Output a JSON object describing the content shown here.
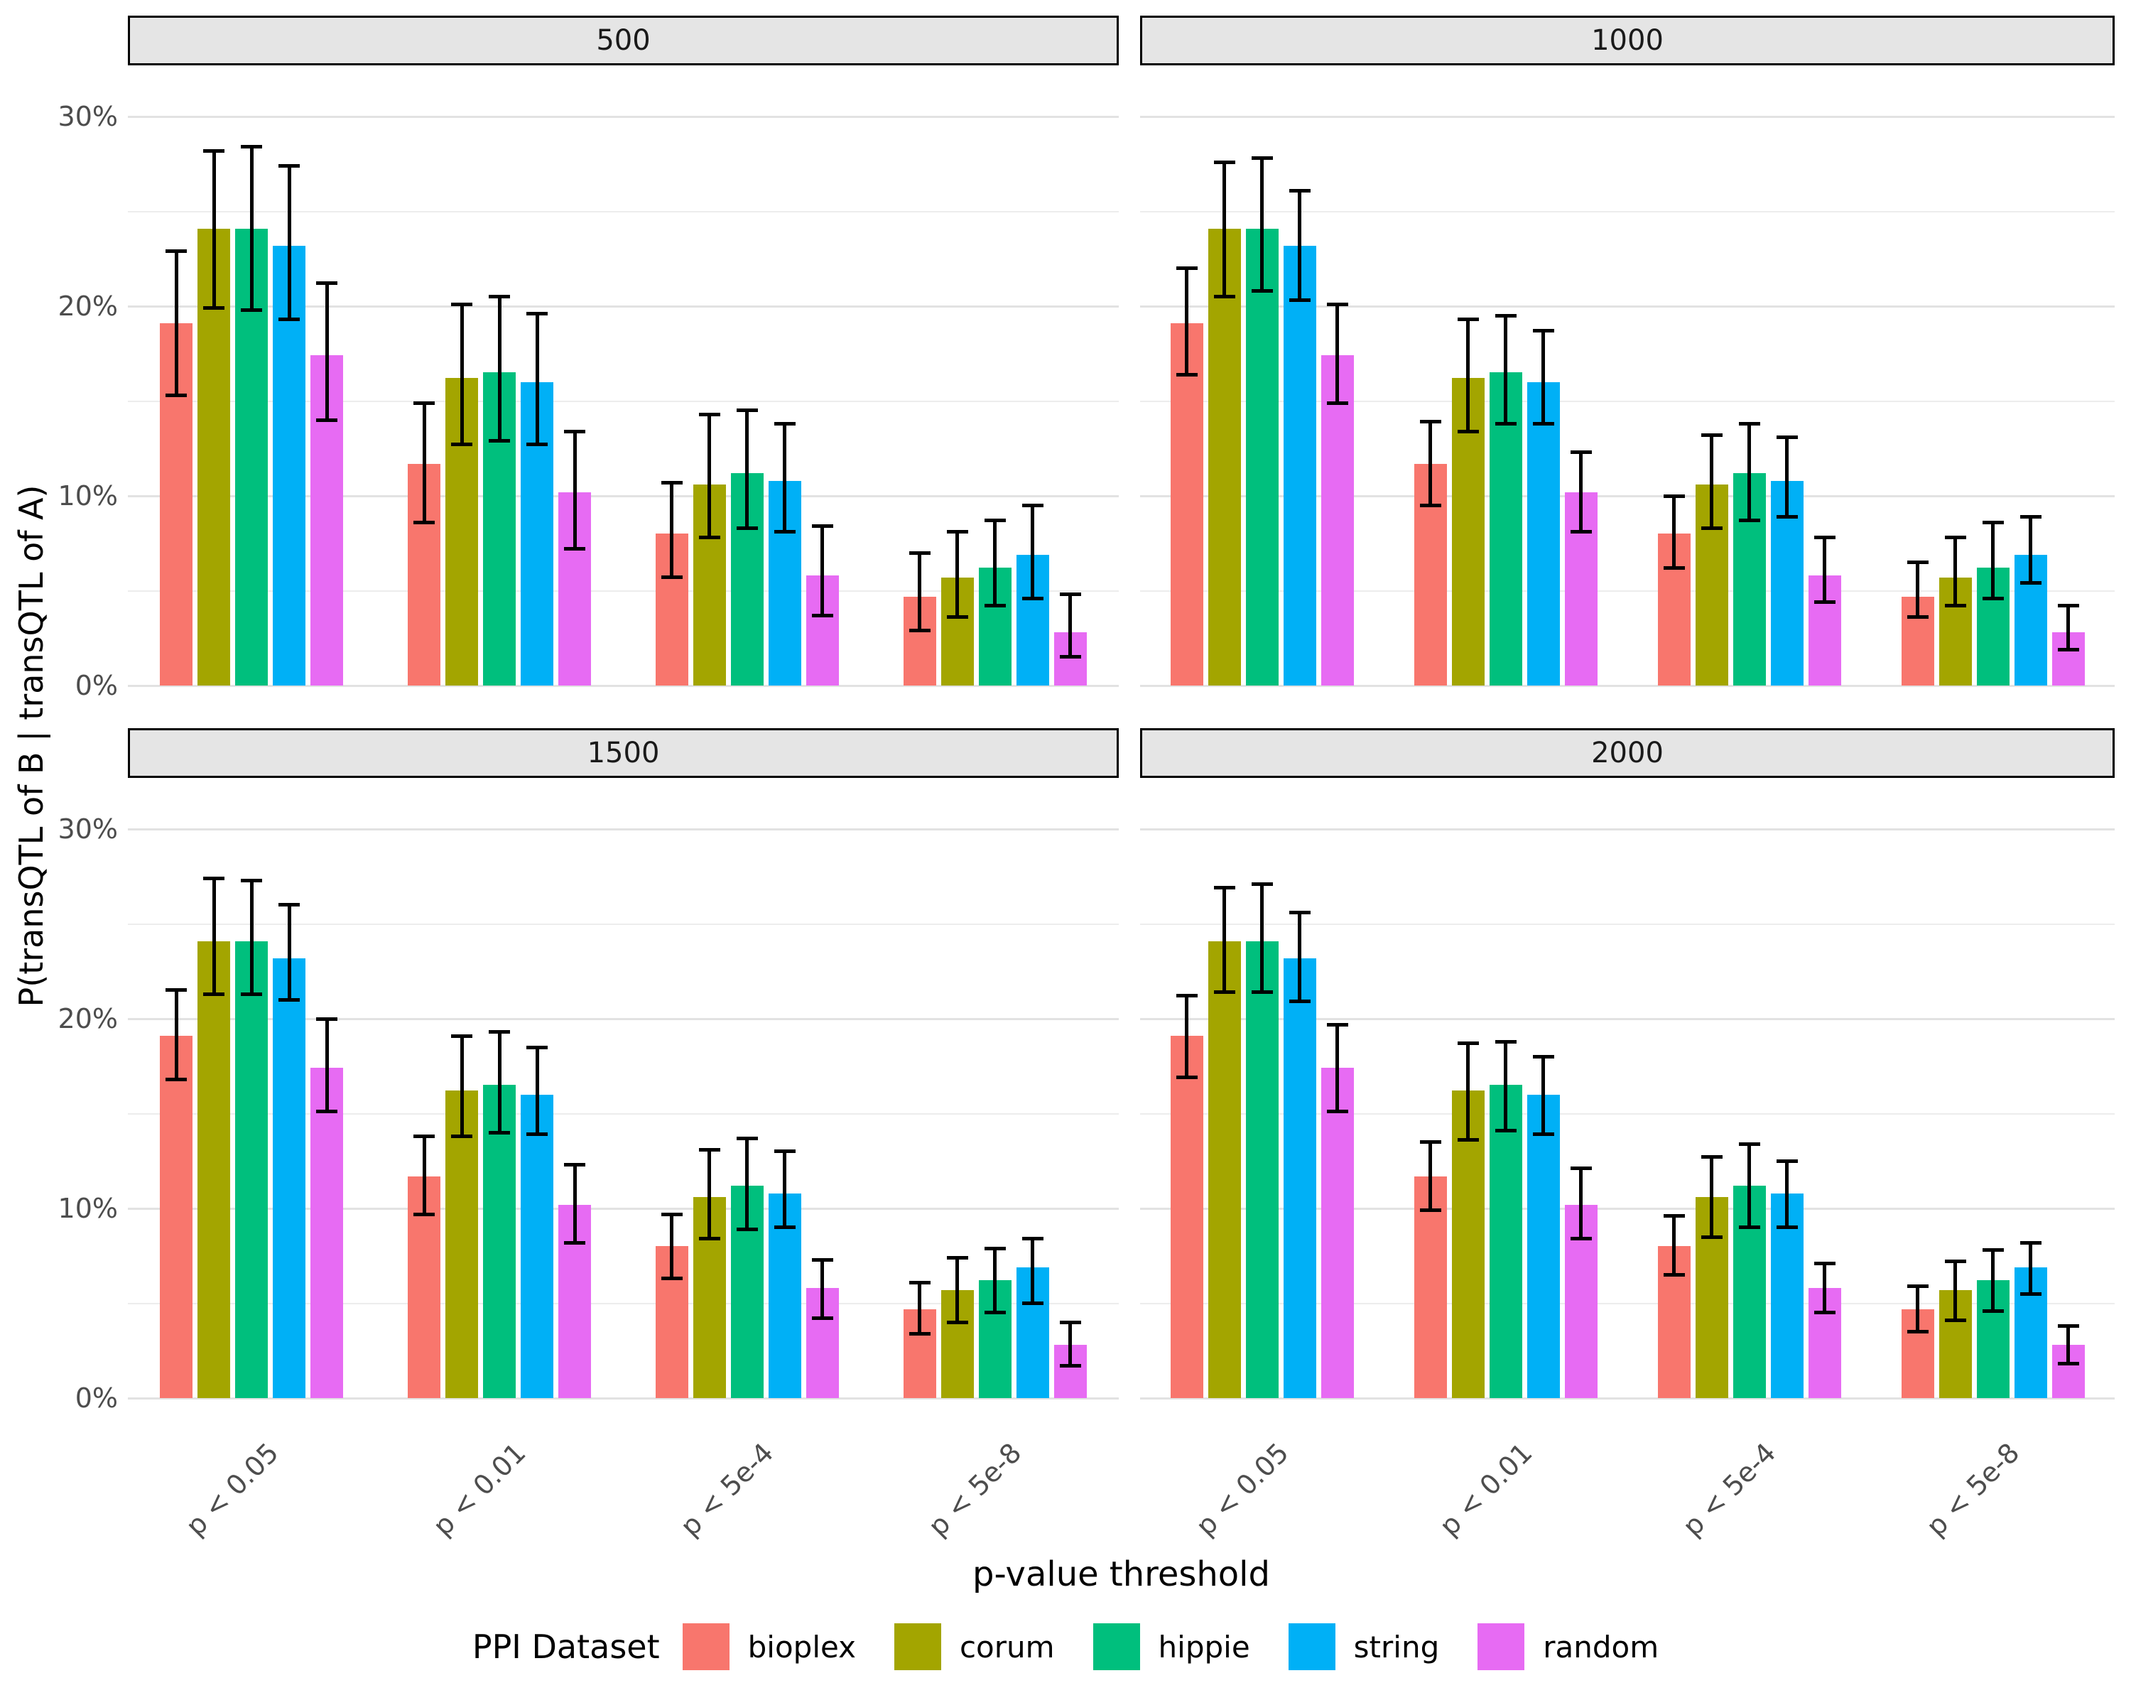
{
  "styles": {
    "background": "#FFFFFF",
    "strip_background": "#E5E5E5",
    "strip_border": "#000000",
    "grid_major": "#E2E2E2",
    "grid_minor": "#EDEDED",
    "error_bar": "#000000",
    "tick_label": "#4D4D4D",
    "title_text": "#000000"
  },
  "chart_data": {
    "type": "bar",
    "title": "",
    "ylabel": "P(transQTL of B | transQTL of A)",
    "xlabel": "p-value threshold",
    "legend_title": "PPI Dataset",
    "legend_position": "bottom",
    "facet_layout": "2x2",
    "grid": {
      "major": [
        0,
        10,
        20,
        30
      ],
      "minor": [
        5,
        15,
        25
      ]
    },
    "ylim": [
      0,
      30
    ],
    "yticks": [
      {
        "value": 0,
        "label": "0%"
      },
      {
        "value": 10,
        "label": "10%"
      },
      {
        "value": 20,
        "label": "20%"
      },
      {
        "value": 30,
        "label": "30%"
      }
    ],
    "categories": [
      "p < 0.05",
      "p < 0.01",
      "p < 5e-4",
      "p < 5e-8"
    ],
    "series": [
      {
        "name": "bioplex",
        "color": "#F8766D"
      },
      {
        "name": "corum",
        "color": "#A3A500"
      },
      {
        "name": "hippie",
        "color": "#00BF7D"
      },
      {
        "name": "string",
        "color": "#00B0F6"
      },
      {
        "name": "random",
        "color": "#E76BF3"
      }
    ],
    "values_format": "facets[i].values[category_index][series_index] = [value_pct, ci_low_pct, ci_high_pct]",
    "facets": [
      {
        "label": "500",
        "values": [
          [
            [
              19.1,
              15.3,
              22.9
            ],
            [
              24.1,
              19.9,
              28.2
            ],
            [
              24.1,
              19.8,
              28.4
            ],
            [
              23.2,
              19.3,
              27.4
            ],
            [
              17.4,
              14.0,
              21.2
            ]
          ],
          [
            [
              11.7,
              8.6,
              14.9
            ],
            [
              16.2,
              12.7,
              20.1
            ],
            [
              16.5,
              12.9,
              20.5
            ],
            [
              16.0,
              12.7,
              19.6
            ],
            [
              10.2,
              7.2,
              13.4
            ]
          ],
          [
            [
              8.0,
              5.7,
              10.7
            ],
            [
              10.6,
              7.8,
              14.3
            ],
            [
              11.2,
              8.3,
              14.5
            ],
            [
              10.8,
              8.1,
              13.8
            ],
            [
              5.8,
              3.7,
              8.4
            ]
          ],
          [
            [
              4.7,
              2.9,
              7.0
            ],
            [
              5.7,
              3.6,
              8.1
            ],
            [
              6.2,
              4.2,
              8.7
            ],
            [
              6.9,
              4.6,
              9.5
            ],
            [
              2.8,
              1.5,
              4.8
            ]
          ]
        ]
      },
      {
        "label": "1000",
        "values": [
          [
            [
              19.1,
              16.4,
              22.0
            ],
            [
              24.1,
              20.5,
              27.6
            ],
            [
              24.1,
              20.8,
              27.8
            ],
            [
              23.2,
              20.3,
              26.1
            ],
            [
              17.4,
              14.9,
              20.1
            ]
          ],
          [
            [
              11.7,
              9.5,
              13.9
            ],
            [
              16.2,
              13.4,
              19.3
            ],
            [
              16.5,
              13.8,
              19.5
            ],
            [
              16.0,
              13.8,
              18.7
            ],
            [
              10.2,
              8.1,
              12.3
            ]
          ],
          [
            [
              8.0,
              6.2,
              10.0
            ],
            [
              10.6,
              8.3,
              13.2
            ],
            [
              11.2,
              8.7,
              13.8
            ],
            [
              10.8,
              8.9,
              13.1
            ],
            [
              5.8,
              4.4,
              7.8
            ]
          ],
          [
            [
              4.7,
              3.6,
              6.5
            ],
            [
              5.7,
              4.2,
              7.8
            ],
            [
              6.2,
              4.6,
              8.6
            ],
            [
              6.9,
              5.4,
              8.9
            ],
            [
              2.8,
              1.9,
              4.2
            ]
          ]
        ]
      },
      {
        "label": "1500",
        "values": [
          [
            [
              19.1,
              16.8,
              21.5
            ],
            [
              24.1,
              21.3,
              27.4
            ],
            [
              24.1,
              21.3,
              27.3
            ],
            [
              23.2,
              21.0,
              26.0
            ],
            [
              17.4,
              15.1,
              20.0
            ]
          ],
          [
            [
              11.7,
              9.7,
              13.8
            ],
            [
              16.2,
              13.8,
              19.1
            ],
            [
              16.5,
              14.0,
              19.3
            ],
            [
              16.0,
              13.9,
              18.5
            ],
            [
              10.2,
              8.2,
              12.3
            ]
          ],
          [
            [
              8.0,
              6.3,
              9.7
            ],
            [
              10.6,
              8.4,
              13.1
            ],
            [
              11.2,
              8.9,
              13.7
            ],
            [
              10.8,
              9.0,
              13.0
            ],
            [
              5.8,
              4.2,
              7.3
            ]
          ],
          [
            [
              4.7,
              3.4,
              6.1
            ],
            [
              5.7,
              4.0,
              7.4
            ],
            [
              6.2,
              4.5,
              7.9
            ],
            [
              6.9,
              5.0,
              8.4
            ],
            [
              2.8,
              1.7,
              4.0
            ]
          ]
        ]
      },
      {
        "label": "2000",
        "values": [
          [
            [
              19.1,
              16.9,
              21.2
            ],
            [
              24.1,
              21.4,
              26.9
            ],
            [
              24.1,
              21.4,
              27.1
            ],
            [
              23.2,
              20.9,
              25.6
            ],
            [
              17.4,
              15.1,
              19.7
            ]
          ],
          [
            [
              11.7,
              9.9,
              13.5
            ],
            [
              16.2,
              13.6,
              18.7
            ],
            [
              16.5,
              14.1,
              18.8
            ],
            [
              16.0,
              13.9,
              18.0
            ],
            [
              10.2,
              8.4,
              12.1
            ]
          ],
          [
            [
              8.0,
              6.5,
              9.6
            ],
            [
              10.6,
              8.5,
              12.7
            ],
            [
              11.2,
              9.0,
              13.4
            ],
            [
              10.8,
              9.0,
              12.5
            ],
            [
              5.8,
              4.5,
              7.1
            ]
          ],
          [
            [
              4.7,
              3.5,
              5.9
            ],
            [
              5.7,
              4.1,
              7.2
            ],
            [
              6.2,
              4.6,
              7.8
            ],
            [
              6.9,
              5.5,
              8.2
            ],
            [
              2.8,
              1.8,
              3.8
            ]
          ]
        ]
      }
    ]
  }
}
